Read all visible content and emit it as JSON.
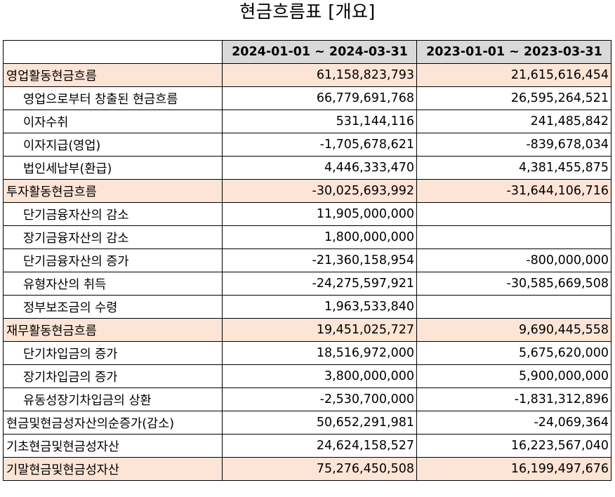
{
  "title": "현금흐름표 [개요]",
  "columns": [
    "",
    "2024-01-01 ~ 2024-03-31",
    "2023-01-01 ~ 2023-03-31"
  ],
  "rows": [
    {
      "label": "영업활동현금흐름",
      "v1": "61,158,823,793",
      "v2": "21,615,616,454",
      "highlight": true,
      "indent": false
    },
    {
      "label": "영업으로부터 창출된 현금흐름",
      "v1": "66,779,691,768",
      "v2": "26,595,264,521",
      "highlight": false,
      "indent": true
    },
    {
      "label": "이자수취",
      "v1": "531,144,116",
      "v2": "241,485,842",
      "highlight": false,
      "indent": true
    },
    {
      "label": "이자지급(영업)",
      "v1": "-1,705,678,621",
      "v2": "-839,678,034",
      "highlight": false,
      "indent": true
    },
    {
      "label": "법인세납부(환급)",
      "v1": "4,446,333,470",
      "v2": "4,381,455,875",
      "highlight": false,
      "indent": true
    },
    {
      "label": "투자활동현금흐름",
      "v1": "-30,025,693,992",
      "v2": "-31,644,106,716",
      "highlight": true,
      "indent": false
    },
    {
      "label": "단기금융자산의 감소",
      "v1": "11,905,000,000",
      "v2": "",
      "highlight": false,
      "indent": true
    },
    {
      "label": "장기금융자산의 감소",
      "v1": "1,800,000,000",
      "v2": "",
      "highlight": false,
      "indent": true
    },
    {
      "label": "단기금융자산의 증가",
      "v1": "-21,360,158,954",
      "v2": "-800,000,000",
      "highlight": false,
      "indent": true
    },
    {
      "label": "유형자산의 취득",
      "v1": "-24,275,597,921",
      "v2": "-30,585,669,508",
      "highlight": false,
      "indent": true
    },
    {
      "label": "정부보조금의 수령",
      "v1": "1,963,533,840",
      "v2": "",
      "highlight": false,
      "indent": true
    },
    {
      "label": "재무활동현금흐름",
      "v1": "19,451,025,727",
      "v2": "9,690,445,558",
      "highlight": true,
      "indent": false
    },
    {
      "label": "단기차입금의 증가",
      "v1": "18,516,972,000",
      "v2": "5,675,620,000",
      "highlight": false,
      "indent": true
    },
    {
      "label": "장기차입금의 증가",
      "v1": "3,800,000,000",
      "v2": "5,900,000,000",
      "highlight": false,
      "indent": true
    },
    {
      "label": "유동성장기차입금의 상환",
      "v1": "-2,530,700,000",
      "v2": "-1,831,312,896",
      "highlight": false,
      "indent": true
    },
    {
      "label": "현금및현금성자산의순증가(감소)",
      "v1": "50,652,291,981",
      "v2": "-24,069,364",
      "highlight": false,
      "indent": false
    },
    {
      "label": "기초현금및현금성자산",
      "v1": "24,624,158,527",
      "v2": "16,223,567,040",
      "highlight": false,
      "indent": false
    },
    {
      "label": "기말현금및현금성자산",
      "v1": "75,276,450,508",
      "v2": "16,199,497,676",
      "highlight": true,
      "indent": false
    }
  ]
}
